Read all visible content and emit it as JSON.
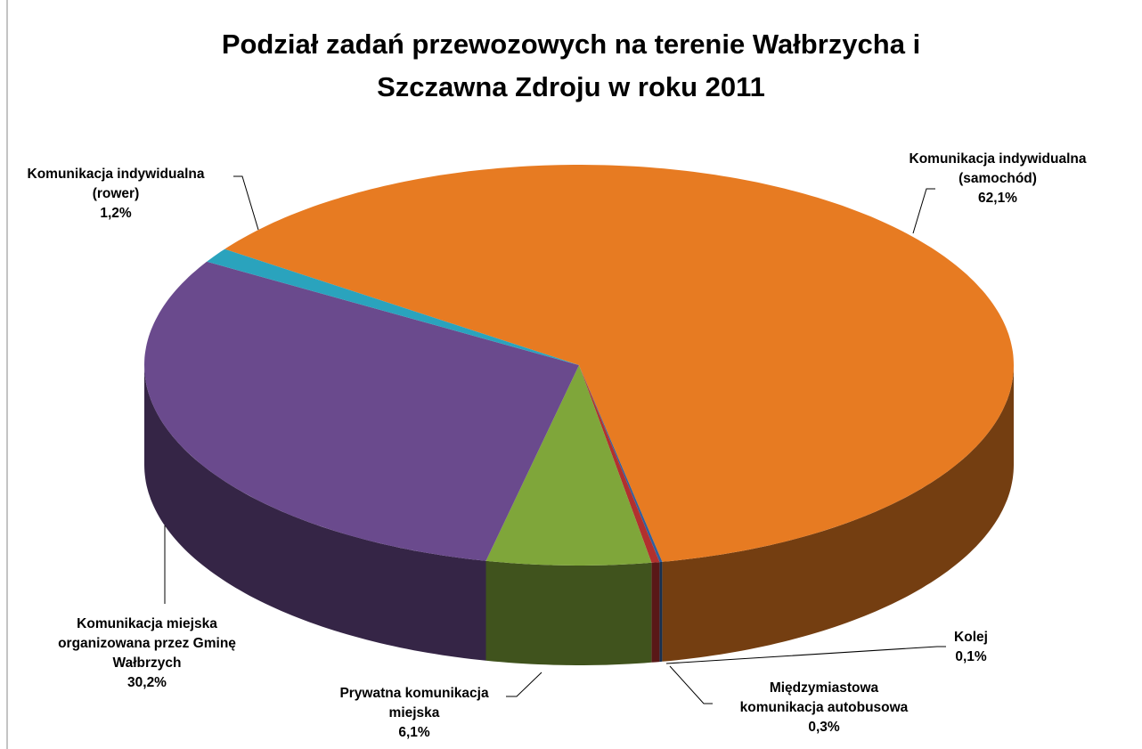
{
  "chart_data": {
    "type": "pie",
    "title": "Podział zadań przewozowych na terenie Wałbrzycha i Szczawna Zdroju w roku 2011",
    "categories": [
      "Komunikacja indywidualna (samochód)",
      "Kolej",
      "Międzymiastowa komunikacja autobusowa",
      "Prywatna komunikacja miejska",
      "Komunikacja miejska organizowana przez Gminę Wałbrzych",
      "Komunikacja indywidualna (rower)"
    ],
    "values": [
      62.1,
      0.1,
      0.3,
      6.1,
      30.2,
      1.2
    ],
    "value_labels": [
      "62,1%",
      "0,1%",
      "0,3%",
      "6,1%",
      "30,2%",
      "1,2%"
    ],
    "colors": [
      "#e77b22",
      "#2f5f9e",
      "#b2302e",
      "#7fa63a",
      "#6a4a8d",
      "#2aa3bd"
    ]
  }
}
